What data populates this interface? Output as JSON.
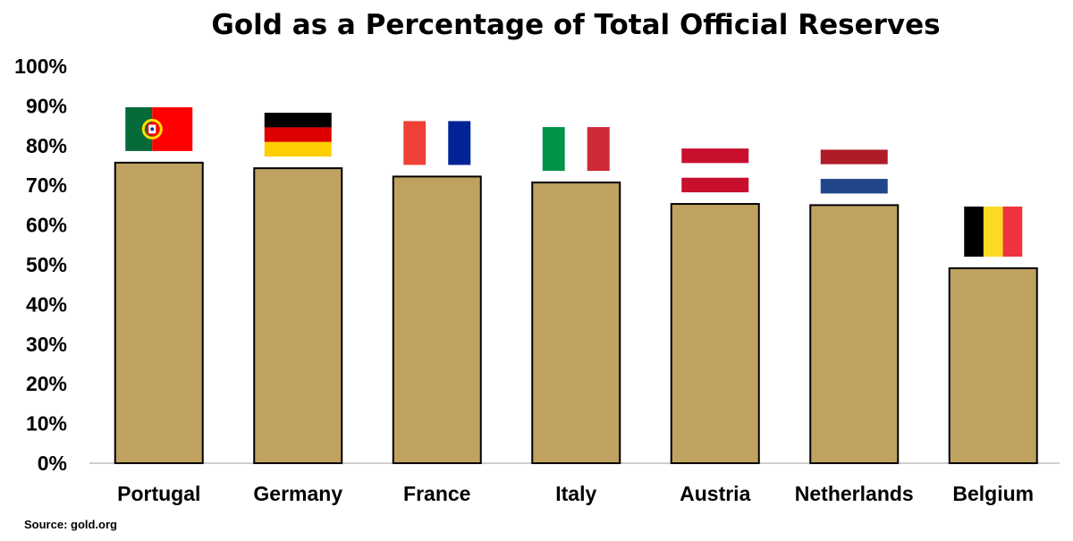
{
  "chart_data": {
    "type": "bar",
    "title": "Gold as a Percentage of Total Official Reserves",
    "xlabel": "",
    "ylabel": "",
    "ylim": [
      0,
      100
    ],
    "yticks": [
      "0%",
      "10%",
      "20%",
      "30%",
      "40%",
      "50%",
      "60%",
      "70%",
      "80%",
      "90%",
      "100%"
    ],
    "categories": [
      "Portugal",
      "Germany",
      "France",
      "Italy",
      "Austria",
      "Netherlands",
      "Belgium"
    ],
    "values": [
      75.7,
      74.3,
      72.2,
      70.7,
      65.3,
      65.0,
      49.1
    ],
    "bar_color": "#c0a260",
    "grid": false,
    "legend": "none",
    "flags": [
      "portugal-flag",
      "germany-flag",
      "france-flag",
      "italy-flag",
      "austria-flag",
      "netherlands-flag",
      "belgium-flag"
    ]
  },
  "source": "Source: gold.org"
}
